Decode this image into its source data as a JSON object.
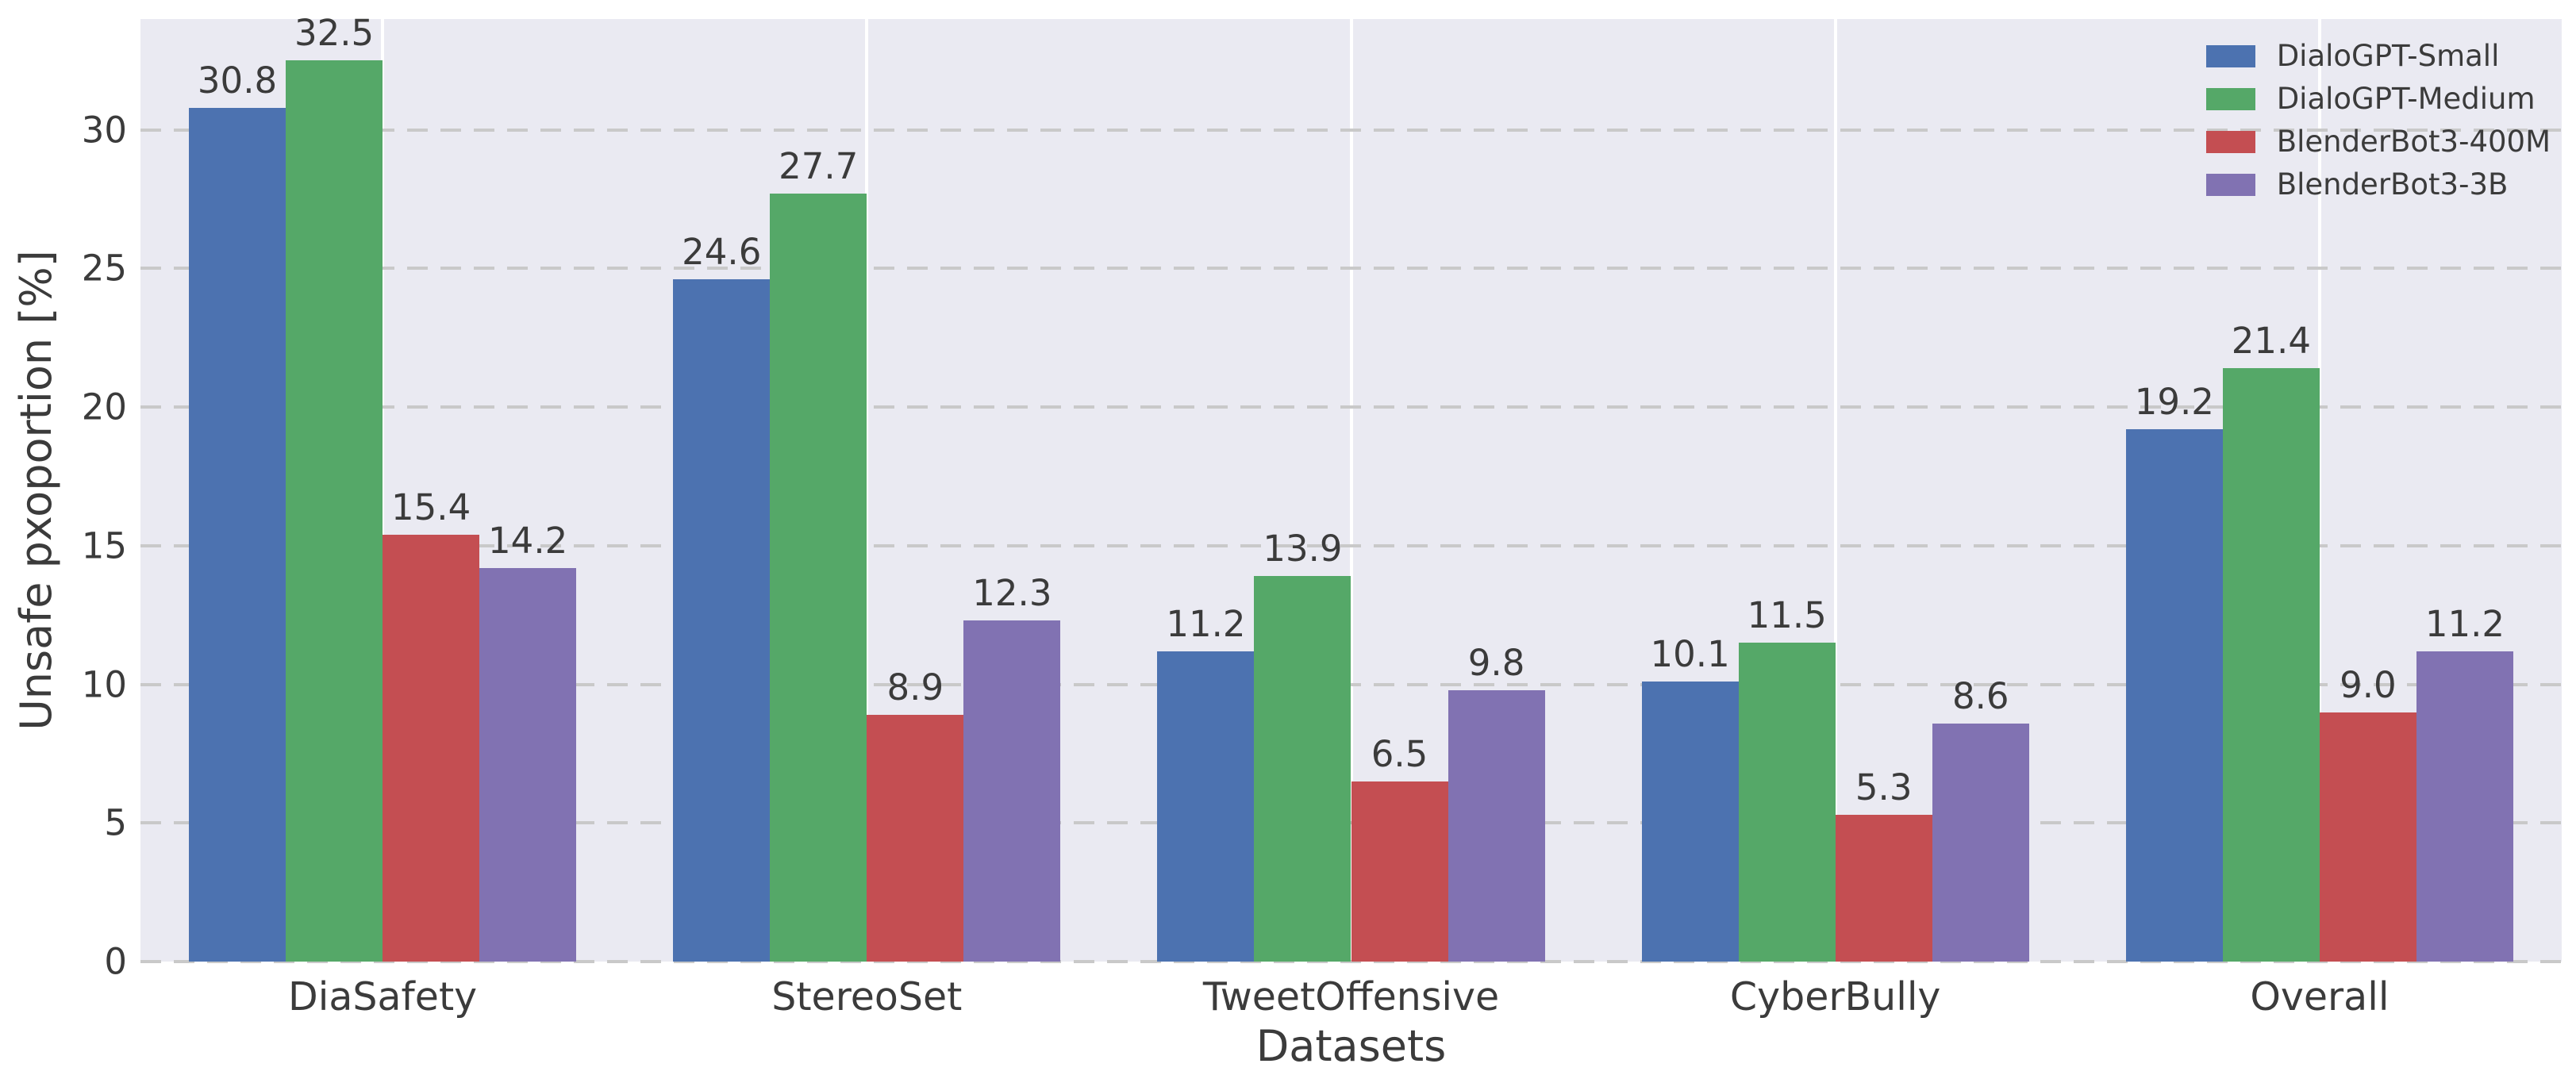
{
  "chart_data": {
    "type": "bar",
    "title": "",
    "xlabel": "Datasets",
    "ylabel": "Unsafe pxoportion [%]",
    "categories": [
      "DiaSafety",
      "StereoSet",
      "TweetOffensive",
      "CyberBully",
      "Overall"
    ],
    "series": [
      {
        "name": "DialoGPT-Small",
        "color": "#4C72B0",
        "values": [
          30.8,
          24.6,
          11.2,
          10.1,
          19.2
        ]
      },
      {
        "name": "DialoGPT-Medium",
        "color": "#55A868",
        "values": [
          32.5,
          27.7,
          13.9,
          11.5,
          21.4
        ]
      },
      {
        "name": "BlenderBot3-400M",
        "color": "#C44E52",
        "values": [
          15.4,
          8.9,
          6.5,
          5.3,
          9.0
        ]
      },
      {
        "name": "BlenderBot3-3B",
        "color": "#8172B2",
        "values": [
          14.2,
          12.3,
          9.8,
          8.6,
          11.2
        ]
      }
    ],
    "bar_value_labels": [
      [
        "30.8",
        "24.6",
        "11.2",
        "10.1",
        "19.2"
      ],
      [
        "32.5",
        "27.7",
        "13.9",
        "11.5",
        "21.4"
      ],
      [
        "15.4",
        "8.9",
        "6.5",
        "5.3",
        "9.0"
      ],
      [
        "14.2",
        "12.3",
        "9.8",
        "8.6",
        "11.2"
      ]
    ],
    "yticks": [
      0,
      5,
      10,
      15,
      20,
      25,
      30
    ],
    "ylim": [
      0,
      34.0
    ],
    "grid": {
      "horizontal_style": "dashed",
      "horizontal_color": "#c9c9c9",
      "vertical_style": "solid",
      "vertical_color": "#ffffff"
    },
    "legend_position": "upper right",
    "plot_background": "#eaeaf2",
    "text_color": "#3b3b3b"
  }
}
